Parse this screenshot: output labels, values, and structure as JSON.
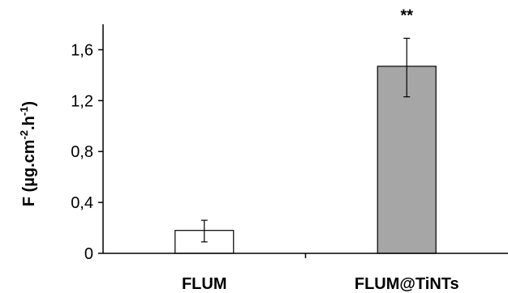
{
  "chart_data": {
    "type": "bar",
    "categories": [
      "FLUM",
      "FLUM@TiNTs"
    ],
    "values": [
      0.18,
      1.47
    ],
    "error_low": [
      0.09,
      1.23
    ],
    "error_high": [
      0.26,
      1.69
    ],
    "annotations": [
      "",
      "**"
    ],
    "bar_colors": [
      "#ffffff",
      "#a6a6a6"
    ],
    "ylabel": {
      "prefix": "F (µg.cm",
      "sup1": "-2",
      "middle": ".h",
      "sup2": "-1",
      "suffix": ")"
    },
    "ylim": [
      0,
      1.8
    ],
    "yticks": [
      0,
      0.4,
      0.8,
      1.2,
      1.6
    ],
    "ytick_labels": [
      "0",
      "0,4",
      "0,8",
      "1,2",
      "1,6"
    ],
    "grid": false
  }
}
